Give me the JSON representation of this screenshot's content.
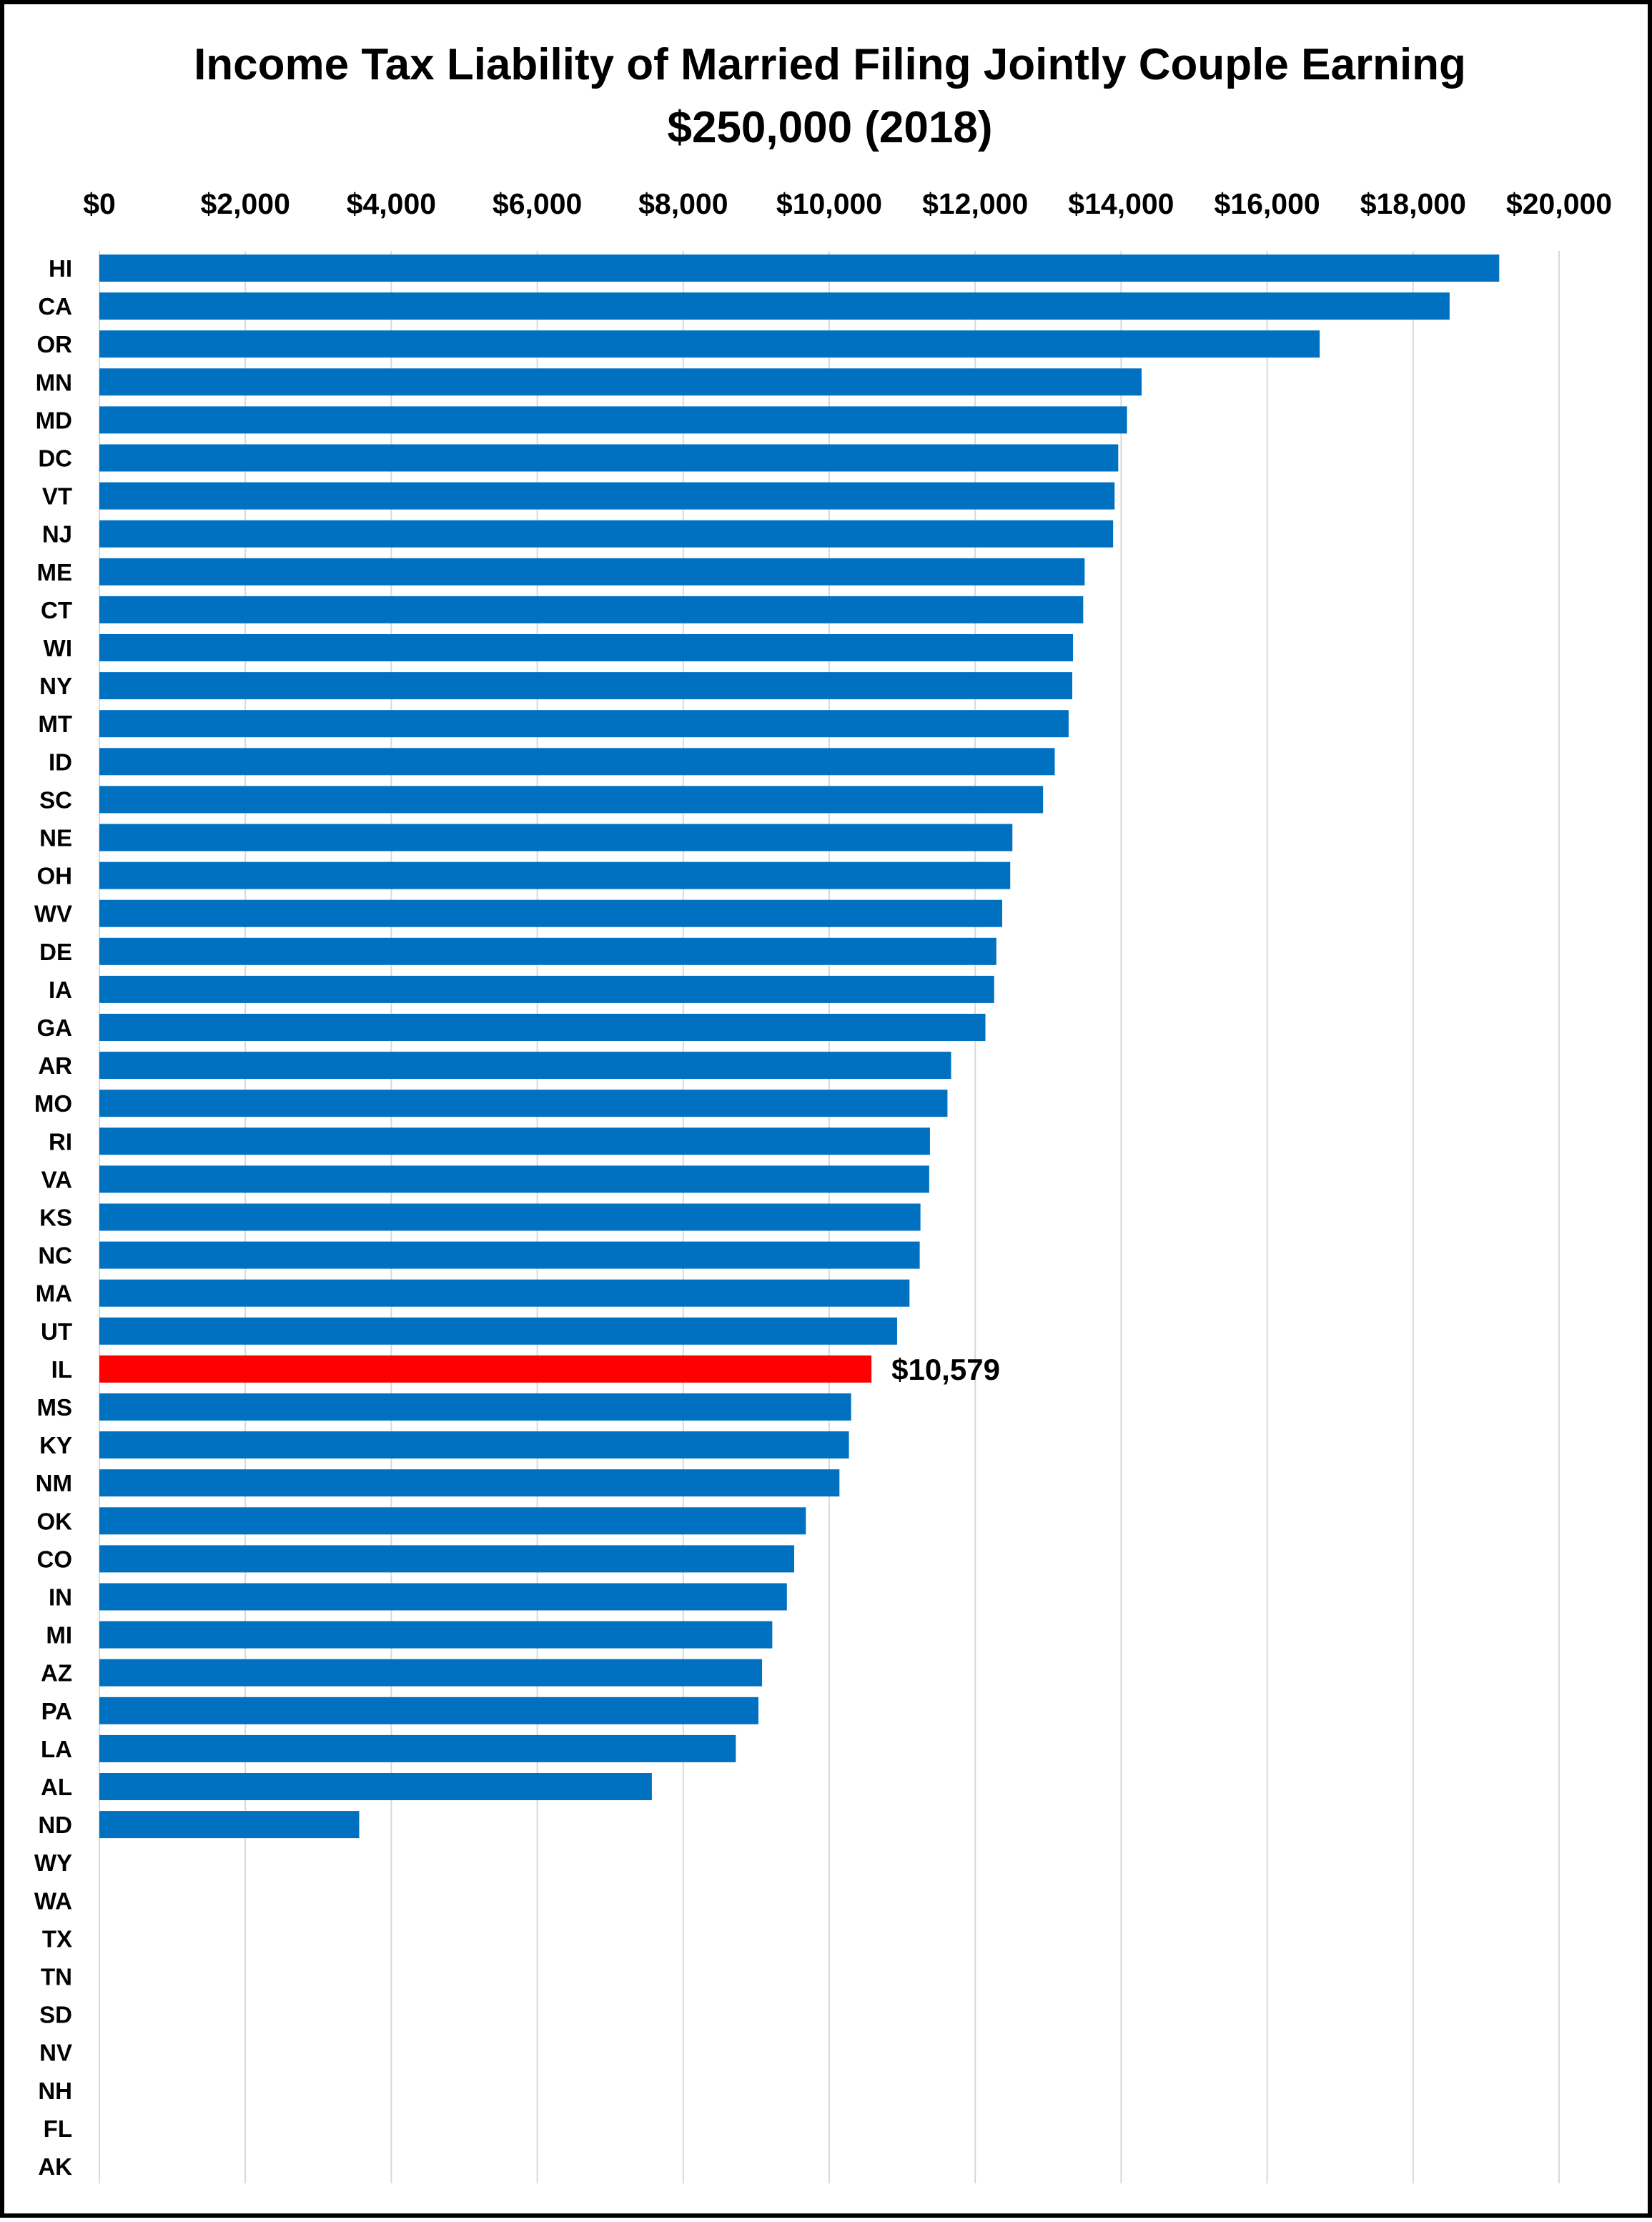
{
  "chart_data": {
    "type": "bar",
    "orientation": "horizontal",
    "title": "Income Tax Liability of Married Filing Jointly Couple Earning",
    "subtitle": "$250,000 (2018)",
    "xlim": [
      0,
      20000
    ],
    "x_ticks": [
      "$0",
      "$2,000",
      "$4,000",
      "$6,000",
      "$8,000",
      "$10,000",
      "$12,000",
      "$14,000",
      "$16,000",
      "$18,000",
      "$20,000"
    ],
    "x_tick_values": [
      0,
      2000,
      4000,
      6000,
      8000,
      10000,
      12000,
      14000,
      16000,
      18000,
      20000
    ],
    "x_axis_position": "top",
    "grid": true,
    "colors": {
      "default": "#0070c0",
      "highlight": "#ff0000"
    },
    "highlight": "IL",
    "annotations": [
      {
        "category": "IL",
        "text": "$10,579"
      }
    ],
    "categories": [
      "HI",
      "CA",
      "OR",
      "MN",
      "MD",
      "DC",
      "VT",
      "NJ",
      "ME",
      "CT",
      "WI",
      "NY",
      "MT",
      "ID",
      "SC",
      "NE",
      "OH",
      "WV",
      "DE",
      "IA",
      "GA",
      "AR",
      "MO",
      "RI",
      "VA",
      "KS",
      "NC",
      "MA",
      "UT",
      "IL",
      "MS",
      "KY",
      "NM",
      "OK",
      "CO",
      "IN",
      "MI",
      "AZ",
      "PA",
      "LA",
      "AL",
      "ND",
      "WY",
      "WA",
      "TX",
      "TN",
      "SD",
      "NV",
      "NH",
      "FL",
      "AK"
    ],
    "values": [
      19180,
      18500,
      16720,
      14280,
      14080,
      13960,
      13910,
      13890,
      13500,
      13480,
      13340,
      13330,
      13280,
      13090,
      12930,
      12510,
      12480,
      12370,
      12290,
      12260,
      12140,
      11670,
      11620,
      11380,
      11370,
      11250,
      11240,
      11100,
      10930,
      10579,
      10300,
      10270,
      10140,
      9680,
      9520,
      9420,
      9220,
      9080,
      9030,
      8720,
      7570,
      3560,
      0,
      0,
      0,
      0,
      0,
      0,
      0,
      0,
      0
    ]
  }
}
